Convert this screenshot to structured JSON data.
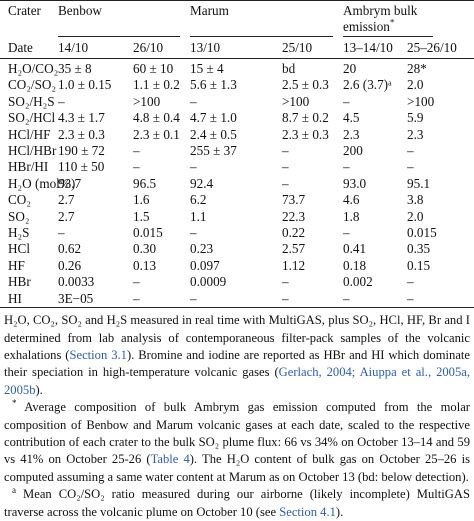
{
  "table": {
    "header_groups": [
      {
        "label": "Crater"
      },
      {
        "label": "Benbow",
        "span": 2
      },
      {
        "label": "Marum",
        "span": 2
      },
      {
        "label": "Ambrym bulk emission",
        "marker": "*",
        "span": 2
      }
    ],
    "columns": [
      "Date",
      "14/10",
      "26/10",
      "13/10",
      "25/10",
      "13–14/10",
      "25–26/10"
    ],
    "rows": [
      [
        "H₂O/CO₂",
        "35 ± 8",
        "60 ± 10",
        "15 ± 4",
        "bd",
        "20",
        "28*"
      ],
      [
        "CO₂/SO₂",
        "1.0 ± 0.15",
        "1.1 ± 0.2",
        "5.6 ± 1.3",
        "2.5 ± 0.3",
        "2.6 (3.7)ᵃ",
        "2.0"
      ],
      [
        "SO₂/H₂S",
        "–",
        ">100",
        "–",
        ">100",
        "–",
        ">100"
      ],
      [
        "SO₂/HCl",
        "4.3 ± 1.7",
        "4.8 ± 0.4",
        "4.7 ± 1.0",
        "8.7 ± 0.2",
        "4.5",
        "5.9"
      ],
      [
        "HCl/HF",
        "2.3 ± 0.3",
        "2.3 ± 0.1",
        "2.4 ± 0.5",
        "2.3 ± 0.3",
        "2.3",
        "2.3"
      ],
      [
        "HCl/HBr",
        "190 ± 72",
        "–",
        "255 ± 37",
        "–",
        "200",
        "–"
      ],
      [
        "HBr/HI",
        "110 ± 50",
        "–",
        "–",
        "–",
        "–",
        "–"
      ],
      [
        "H₂O (mol%)",
        "93.7",
        "96.5",
        "92.4",
        "–",
        "93.0",
        "95.1"
      ],
      [
        "CO₂",
        "2.7",
        "1.6",
        "6.2",
        "73.7",
        "4.6",
        "3.8"
      ],
      [
        "SO₂",
        "2.7",
        "1.5",
        "1.1",
        "22.3",
        "1.8",
        "2.0"
      ],
      [
        "H₂S",
        "–",
        "0.015",
        "–",
        "0.22",
        "–",
        "0.015"
      ],
      [
        "HCl",
        "0.62",
        "0.30",
        "0.23",
        "2.57",
        "0.41",
        "0.35"
      ],
      [
        "HF",
        "0.26",
        "0.13",
        "0.097",
        "1.12",
        "0.18",
        "0.15"
      ],
      [
        "HBr",
        "0.0033",
        "–",
        "0.0009",
        "–",
        "0.002",
        "–"
      ],
      [
        "HI",
        "3E−05",
        "–",
        "–",
        "–",
        "–",
        "–"
      ]
    ]
  },
  "footnotes": [
    {
      "segments": [
        {
          "text": "H₂O, CO₂, SO₂ and H₂S measured in real time with MultiGAS, plus SO₂, HCl, HF, Br and I determined from lab analysis of contemporaneous filter-pack samples of the volcanic exhalations ("
        },
        {
          "text": "Section 3.1",
          "link": true
        },
        {
          "text": "). Bromine and iodine are reported as HBr and HI which dominate their speciation in high-temperature volcanic gases ("
        },
        {
          "text": "Gerlach, 2004; Aiuppa et al., 2005a, 2005b",
          "link": true
        },
        {
          "text": ")."
        }
      ]
    },
    {
      "marker": "*",
      "segments": [
        {
          "text": "Average composition of bulk Ambrym gas emission computed from the molar composition of Benbow and Marum volcanic gases at each date, scaled to the respective contribution of each crater to the bulk SO₂ plume flux: 66 vs 34% on October 13–14 and 59 vs 41% on October 25-26 ("
        },
        {
          "text": "Table 4",
          "link": true
        },
        {
          "text": "). The H₂O content of bulk gas on October 25–26 is computed assuming a same water content at Marum as on October 13 (bd: below detection)."
        }
      ]
    },
    {
      "marker": "a",
      "segments": [
        {
          "text": "Mean CO₂/SO₂ ratio measured during our airborne (likely incomplete) MultiGAS traverse across the volcanic plume on October 10 (see "
        },
        {
          "text": "Section 4.1",
          "link": true
        },
        {
          "text": ")."
        }
      ]
    }
  ]
}
